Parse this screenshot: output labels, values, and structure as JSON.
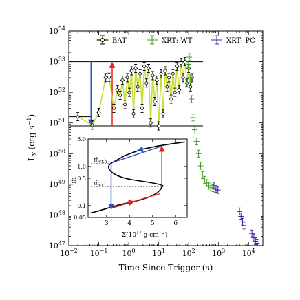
{
  "chart_data": [
    {
      "type": "scatter",
      "xscale": "log",
      "yscale": "log",
      "xlim": [
        0.01,
        30000
      ],
      "ylim": [
        1e+47,
        1e+54
      ],
      "xlabel": "Time Since Trigger (s)",
      "ylabel": "L",
      "ylabel_sub": "X",
      "ylabel_unit": "(erg s",
      "ylabel_unit_sup": "−1",
      "ylabel_unit_end": ")",
      "x_ticks": [
        {
          "value": 0.01,
          "base": "10",
          "exp": "−2"
        },
        {
          "value": 0.1,
          "base": "10",
          "exp": "−1"
        },
        {
          "value": 1,
          "base": "10",
          "exp": "0"
        },
        {
          "value": 10,
          "base": "10",
          "exp": "1"
        },
        {
          "value": 100,
          "base": "10",
          "exp": "2"
        },
        {
          "value": 1000,
          "base": "10",
          "exp": "3"
        },
        {
          "value": 10000,
          "base": "10",
          "exp": "4"
        }
      ],
      "y_ticks": [
        {
          "value": 1e+47,
          "base": "10",
          "exp": "47"
        },
        {
          "value": 1e+48,
          "base": "10",
          "exp": "48"
        },
        {
          "value": 1e+49,
          "base": "10",
          "exp": "49"
        },
        {
          "value": 1e+50,
          "base": "10",
          "exp": "50"
        },
        {
          "value": 1e+51,
          "base": "10",
          "exp": "51"
        },
        {
          "value": 1e+52,
          "base": "10",
          "exp": "52"
        },
        {
          "value": 1e+53,
          "base": "10",
          "exp": "53"
        },
        {
          "value": 1e+54,
          "base": "10",
          "exp": "54"
        }
      ],
      "legend": {
        "position": "top"
      },
      "series": [
        {
          "name": "BAT",
          "color": "#000000",
          "line_color": "#c8dd3a",
          "points": [
            {
              "x": 0.02,
              "y": 1.6e+51
            },
            {
              "x": 0.06,
              "y": 8.5e+50
            },
            {
              "x": 0.1,
              "y": 2.2e+51
            },
            {
              "x": 0.17,
              "y": 3e+52
            },
            {
              "x": 0.22,
              "y": 3.1e+52
            },
            {
              "x": 0.32,
              "y": 3e+51
            },
            {
              "x": 0.42,
              "y": 1.2e+52
            },
            {
              "x": 0.52,
              "y": 8e+51
            },
            {
              "x": 0.62,
              "y": 2.5e+52
            },
            {
              "x": 0.75,
              "y": 4e+51
            },
            {
              "x": 0.9,
              "y": 3e+52
            },
            {
              "x": 1.05,
              "y": 1e+52
            },
            {
              "x": 1.25,
              "y": 5e+52
            },
            {
              "x": 1.45,
              "y": 2e+51
            },
            {
              "x": 1.7,
              "y": 6e+52
            },
            {
              "x": 2.0,
              "y": 1.5e+52
            },
            {
              "x": 2.4,
              "y": 4e+52
            },
            {
              "x": 2.8,
              "y": 3e+51
            },
            {
              "x": 3.3,
              "y": 7e+52
            },
            {
              "x": 3.9,
              "y": 2e+52
            },
            {
              "x": 4.6,
              "y": 6e+52
            },
            {
              "x": 5.4,
              "y": 1e+51
            },
            {
              "x": 6.3,
              "y": 3.5e+52
            },
            {
              "x": 7.4,
              "y": 5e+51
            },
            {
              "x": 8.6,
              "y": 2.5e+52
            },
            {
              "x": 10,
              "y": 8e+50
            },
            {
              "x": 12,
              "y": 4e+52
            },
            {
              "x": 14,
              "y": 2e+51
            },
            {
              "x": 16.5,
              "y": 5e+52
            },
            {
              "x": 19,
              "y": 1.5e+52
            },
            {
              "x": 22,
              "y": 3e+52
            },
            {
              "x": 26,
              "y": 6e+51
            },
            {
              "x": 30,
              "y": 4e+52
            },
            {
              "x": 35,
              "y": 1e+52
            },
            {
              "x": 41,
              "y": 7e+52
            },
            {
              "x": 48,
              "y": 1.2e+52
            },
            {
              "x": 56,
              "y": 9e+52
            },
            {
              "x": 65,
              "y": 3e+52
            },
            {
              "x": 75,
              "y": 1e+53
            },
            {
              "x": 88,
              "y": 2e+52
            },
            {
              "x": 100,
              "y": 6e+52
            },
            {
              "x": 115,
              "y": 1.5e+52
            },
            {
              "x": 130,
              "y": 3e+52
            }
          ]
        },
        {
          "name": "XRT: WT",
          "color": "#3e9a1e",
          "points": [
            {
              "x": 85,
              "y": 2e+52
            },
            {
              "x": 95,
              "y": 8e+52
            },
            {
              "x": 105,
              "y": 1.4e+53
            },
            {
              "x": 115,
              "y": 3e+52
            },
            {
              "x": 125,
              "y": 6e+51
            },
            {
              "x": 140,
              "y": 1.5e+51
            },
            {
              "x": 160,
              "y": 6e+50
            },
            {
              "x": 185,
              "y": 2.5e+50
            },
            {
              "x": 215,
              "y": 1e+50
            },
            {
              "x": 250,
              "y": 4e+49
            },
            {
              "x": 290,
              "y": 2e+49
            },
            {
              "x": 340,
              "y": 1.4e+49
            },
            {
              "x": 400,
              "y": 1.1e+49
            },
            {
              "x": 470,
              "y": 9e+48
            },
            {
              "x": 550,
              "y": 8e+48
            },
            {
              "x": 650,
              "y": 7.5e+48
            },
            {
              "x": 760,
              "y": 7e+48
            }
          ]
        },
        {
          "name": "XRT: PC",
          "color": "#4b1fb0",
          "points": [
            {
              "x": 700,
              "y": 9e+48
            },
            {
              "x": 820,
              "y": 7e+48
            },
            {
              "x": 950,
              "y": 6.5e+48
            },
            {
              "x": 5000,
              "y": 1.3e+48
            },
            {
              "x": 5600,
              "y": 9e+47
            },
            {
              "x": 6300,
              "y": 6e+47
            },
            {
              "x": 7000,
              "y": 4.5e+47
            },
            {
              "x": 13000,
              "y": 2.5e+47
            },
            {
              "x": 15000,
              "y": 1.8e+47
            },
            {
              "x": 17000,
              "y": 1.4e+47
            },
            {
              "x": 19000,
              "y": 1.2e+47
            }
          ]
        }
      ],
      "annotations": {
        "hlines": [
          1e+53,
          8e+50,
          1.6e+51
        ],
        "blue_line": {
          "x": 0.055,
          "from_y": 1e+53,
          "to_y": 8e+50
        },
        "red_line": {
          "x": 0.28,
          "from_y": 8e+50,
          "to_y": 1e+53
        }
      }
    },
    {
      "type": "line",
      "xlabel": "Σ(10",
      "xlabel_sup": "17",
      "xlabel_end": " g cm",
      "xlabel_sup2": "−2",
      "xlabel_close": ")",
      "ylabel": "ṁ",
      "yscale": "log",
      "xlim": [
        2.2,
        6.5
      ],
      "ylim": [
        0.05,
        5.0
      ],
      "x_ticks": [
        "3",
        "4",
        "5",
        "6"
      ],
      "y_ticks": [
        {
          "value": 5.0,
          "label": "5.0"
        },
        {
          "value": 1.0,
          "label": "1.0"
        },
        {
          "value": 0.5,
          "label": "0.5"
        },
        {
          "value": 0.1,
          "label": "0.1"
        },
        {
          "value": 0.05,
          "label": "0.05"
        }
      ],
      "labels": {
        "mdot_crh": "ṁ",
        "mdot_crh_sub": "cr,h",
        "mdot_crl": "ṁ",
        "mdot_crl_sub": "cr,l"
      },
      "thresholds": {
        "mdot_crh": 1.2,
        "mdot_crl": 0.3
      },
      "s_curve": {
        "upper": [
          {
            "x": 3.2,
            "y": 1.2
          },
          {
            "x": 3.8,
            "y": 1.9
          },
          {
            "x": 4.5,
            "y": 2.7
          },
          {
            "x": 5.2,
            "y": 3.3
          },
          {
            "x": 6.0,
            "y": 3.9
          },
          {
            "x": 6.4,
            "y": 4.2
          }
        ],
        "middle": [
          {
            "x": 3.2,
            "y": 1.2
          },
          {
            "x": 4.2,
            "y": 0.6
          },
          {
            "x": 5.4,
            "y": 0.3
          }
        ],
        "lower": [
          {
            "x": 5.4,
            "y": 0.3
          },
          {
            "x": 4.3,
            "y": 0.15
          },
          {
            "x": 3.3,
            "y": 0.09
          },
          {
            "x": 2.3,
            "y": 0.065
          }
        ]
      },
      "cycle": {
        "colors": {
          "down": "#2f52c8",
          "up": "#e0261c"
        }
      }
    }
  ]
}
